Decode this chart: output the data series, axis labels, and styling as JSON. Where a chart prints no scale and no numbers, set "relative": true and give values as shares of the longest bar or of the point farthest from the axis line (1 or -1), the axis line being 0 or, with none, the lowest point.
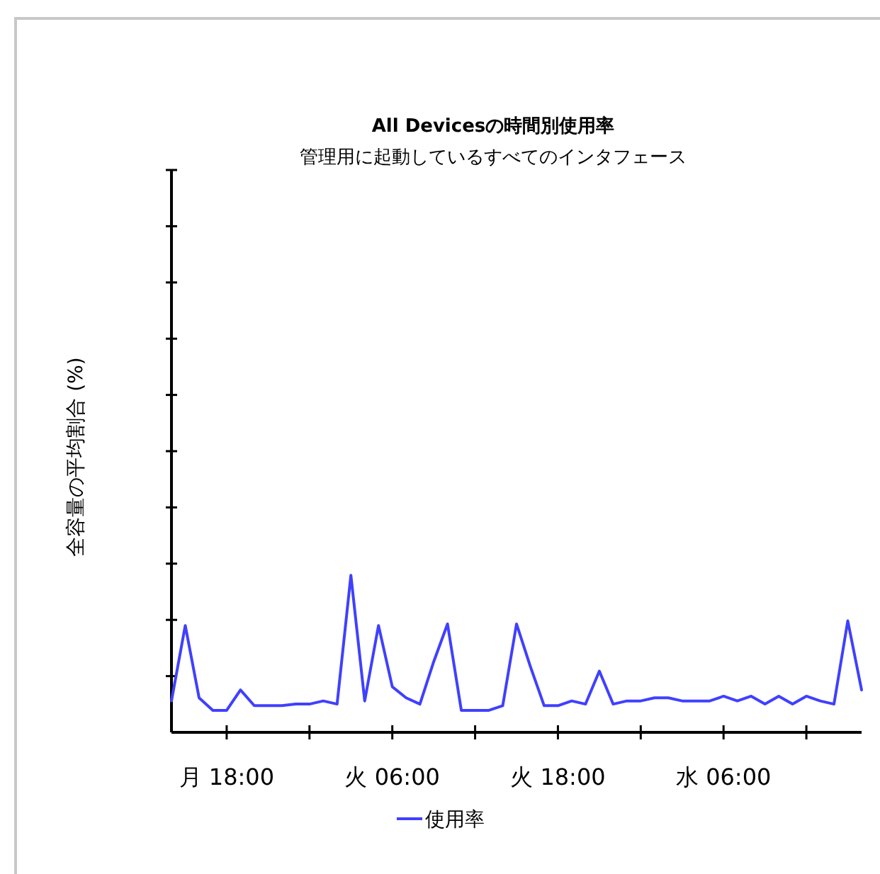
{
  "chart_data": {
    "type": "line",
    "title": "All Devicesの時間別使用率",
    "subtitle": "管理用に起動しているすべてのインタフェース",
    "ylabel": "全容量の平均割合 (%)",
    "relative": true,
    "categories": [
      null,
      null,
      null,
      null,
      "月 18:00",
      null,
      null,
      null,
      null,
      null,
      null,
      null,
      null,
      null,
      null,
      null,
      "火 06:00",
      null,
      null,
      null,
      null,
      null,
      null,
      null,
      null,
      null,
      null,
      null,
      "火 18:00",
      null,
      null,
      null,
      null,
      null,
      null,
      null,
      null,
      null,
      null,
      null,
      "水 06:00",
      null,
      null,
      null,
      null,
      null,
      null,
      null,
      null,
      null,
      null
    ],
    "legend": "bottom",
    "grid": false,
    "marker": "none",
    "line_style": "solid",
    "series": [
      {
        "name": "使用率",
        "color": "#4040ff",
        "values": [
          0.2,
          0.68,
          0.22,
          0.14,
          0.14,
          0.27,
          0.17,
          0.17,
          0.17,
          0.18,
          0.18,
          0.2,
          0.18,
          1,
          0.2,
          0.68,
          0.29,
          0.22,
          0.18,
          0.45,
          0.69,
          0.14,
          0.14,
          0.14,
          0.17,
          0.69,
          0.42,
          0.17,
          0.17,
          0.2,
          0.18,
          0.39,
          0.18,
          0.2,
          0.2,
          0.22,
          0.22,
          0.2,
          0.2,
          0.2,
          0.23,
          0.2,
          0.23,
          0.18,
          0.23,
          0.18,
          0.23,
          0.2,
          0.18,
          0.71,
          0.27
        ]
      }
    ]
  }
}
